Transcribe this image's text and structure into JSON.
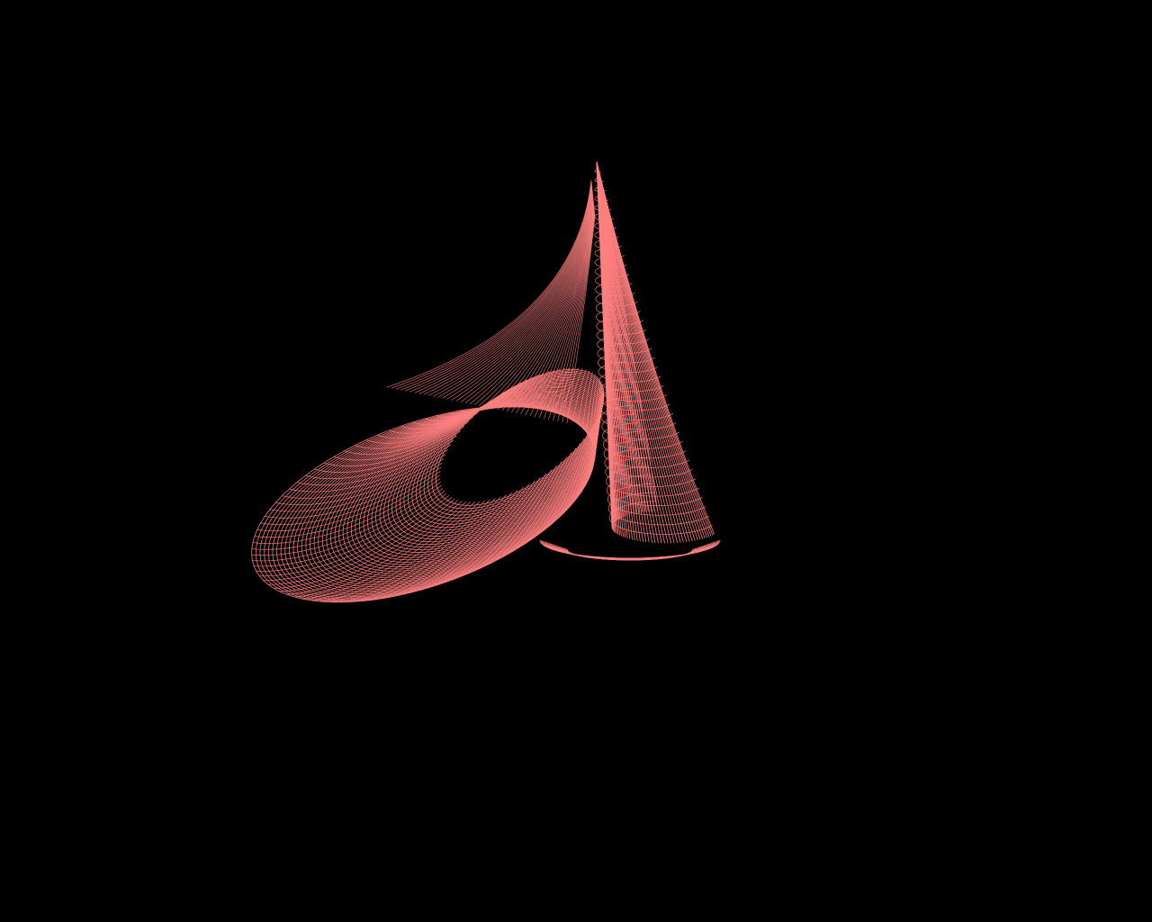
{
  "scene": {
    "background_color": "#000000",
    "mesh_color": "#ff8080",
    "render_style": "wireframe",
    "object": "surface-mesh"
  }
}
